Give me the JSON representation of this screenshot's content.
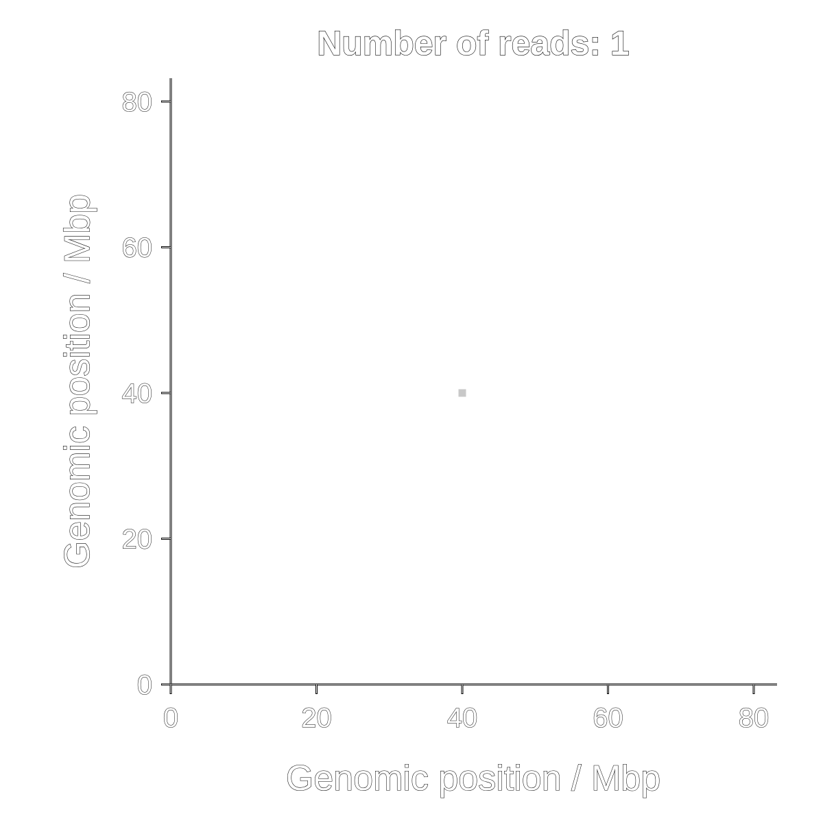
{
  "chart_data": {
    "type": "scatter",
    "title": "Number of reads: 1",
    "xlabel": "Genomic position / Mbp",
    "ylabel": "Genomic position / Mbp",
    "xlim": [
      0,
      83
    ],
    "ylim": [
      0,
      83
    ],
    "xticks": [
      0,
      20,
      40,
      60,
      80
    ],
    "yticks": [
      0,
      20,
      40,
      60,
      80
    ],
    "xtick_labels": [
      "0",
      "20",
      "40",
      "60",
      "80"
    ],
    "ytick_labels": [
      "0",
      "20",
      "40",
      "60",
      "80"
    ],
    "grid": false,
    "points": [
      {
        "x": 40,
        "y": 40
      }
    ],
    "point_color": "#c8c8c8"
  }
}
